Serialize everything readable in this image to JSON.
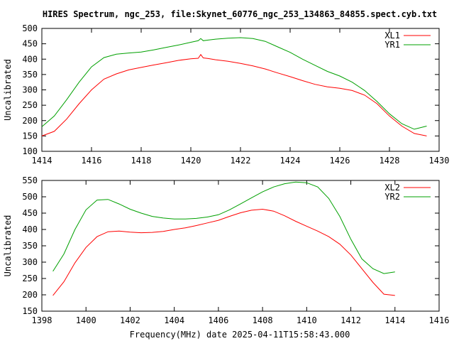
{
  "page_title": "HIRES Spectrum, ngc_253, file:Skynet_60776_ngc_253_134863_84855.spect.cyb.txt",
  "xlabel_bottom": "Frequency(MHz) date 2025-04-11T15:58:43.000",
  "chart_data": [
    {
      "type": "line",
      "xlabel": "",
      "ylabel": "Uncalibrated",
      "xlim": [
        1414,
        1430
      ],
      "ylim": [
        100,
        500
      ],
      "xticks": [
        1414,
        1416,
        1418,
        1420,
        1422,
        1424,
        1426,
        1428,
        1430
      ],
      "yticks": [
        100,
        150,
        200,
        250,
        300,
        350,
        400,
        450,
        500
      ],
      "legend": "top-right",
      "grid": false,
      "series": [
        {
          "name": "XL1",
          "color": "#ff0000",
          "x": [
            1414.0,
            1414.5,
            1415.0,
            1415.5,
            1416.0,
            1416.5,
            1417.0,
            1417.5,
            1418.0,
            1418.5,
            1419.0,
            1419.5,
            1420.0,
            1420.3,
            1420.4,
            1420.5,
            1420.7,
            1421.0,
            1421.5,
            1422.0,
            1422.5,
            1423.0,
            1423.5,
            1424.0,
            1424.5,
            1425.0,
            1425.5,
            1426.0,
            1426.5,
            1427.0,
            1427.5,
            1428.0,
            1428.5,
            1429.0,
            1429.5
          ],
          "y": [
            150,
            165,
            205,
            255,
            300,
            335,
            352,
            365,
            373,
            381,
            388,
            396,
            401,
            403,
            415,
            404,
            402,
            398,
            393,
            386,
            378,
            368,
            355,
            343,
            330,
            318,
            310,
            305,
            298,
            283,
            255,
            215,
            182,
            158,
            150
          ]
        },
        {
          "name": "YR1",
          "color": "#00a000",
          "x": [
            1414.0,
            1414.5,
            1415.0,
            1415.5,
            1416.0,
            1416.5,
            1417.0,
            1417.5,
            1418.0,
            1418.5,
            1419.0,
            1419.5,
            1420.0,
            1420.3,
            1420.4,
            1420.5,
            1420.7,
            1421.0,
            1421.5,
            1422.0,
            1422.5,
            1423.0,
            1423.5,
            1424.0,
            1424.5,
            1425.0,
            1425.5,
            1426.0,
            1426.5,
            1427.0,
            1427.5,
            1428.0,
            1428.5,
            1429.0,
            1429.5
          ],
          "y": [
            180,
            215,
            268,
            325,
            375,
            405,
            416,
            420,
            423,
            430,
            438,
            446,
            455,
            460,
            467,
            460,
            462,
            465,
            468,
            470,
            467,
            458,
            440,
            422,
            400,
            380,
            360,
            345,
            325,
            298,
            262,
            222,
            190,
            172,
            182
          ]
        }
      ]
    },
    {
      "type": "line",
      "xlabel": "Frequency(MHz) date 2025-04-11T15:58:43.000",
      "ylabel": "Uncalibrated",
      "xlim": [
        1398,
        1416
      ],
      "ylim": [
        150,
        550
      ],
      "xticks": [
        1398,
        1400,
        1402,
        1404,
        1406,
        1408,
        1410,
        1412,
        1414,
        1416
      ],
      "yticks": [
        150,
        200,
        250,
        300,
        350,
        400,
        450,
        500,
        550
      ],
      "legend": "top-right",
      "grid": false,
      "series": [
        {
          "name": "XL2",
          "color": "#ff0000",
          "x": [
            1398.5,
            1399.0,
            1399.5,
            1400.0,
            1400.5,
            1401.0,
            1401.5,
            1402.0,
            1402.5,
            1403.0,
            1403.5,
            1404.0,
            1404.5,
            1405.0,
            1405.5,
            1406.0,
            1406.5,
            1407.0,
            1407.5,
            1408.0,
            1408.5,
            1409.0,
            1409.5,
            1410.0,
            1410.5,
            1411.0,
            1411.5,
            1412.0,
            1412.5,
            1413.0,
            1413.5,
            1414.0
          ],
          "y": [
            198,
            240,
            298,
            345,
            378,
            393,
            395,
            392,
            390,
            391,
            394,
            400,
            405,
            412,
            420,
            428,
            440,
            451,
            459,
            462,
            456,
            442,
            425,
            410,
            395,
            378,
            355,
            322,
            280,
            238,
            202,
            198
          ]
        },
        {
          "name": "YR2",
          "color": "#00a000",
          "x": [
            1398.5,
            1399.0,
            1399.5,
            1400.0,
            1400.5,
            1401.0,
            1401.5,
            1402.0,
            1402.5,
            1403.0,
            1403.5,
            1404.0,
            1404.5,
            1405.0,
            1405.5,
            1406.0,
            1406.5,
            1407.0,
            1407.5,
            1408.0,
            1408.5,
            1409.0,
            1409.5,
            1410.0,
            1410.5,
            1411.0,
            1411.5,
            1412.0,
            1412.5,
            1413.0,
            1413.5,
            1414.0
          ],
          "y": [
            272,
            325,
            400,
            460,
            490,
            492,
            478,
            462,
            450,
            440,
            435,
            432,
            432,
            434,
            438,
            445,
            460,
            478,
            497,
            515,
            530,
            540,
            545,
            543,
            530,
            495,
            440,
            370,
            310,
            280,
            265,
            270
          ]
        }
      ]
    }
  ]
}
